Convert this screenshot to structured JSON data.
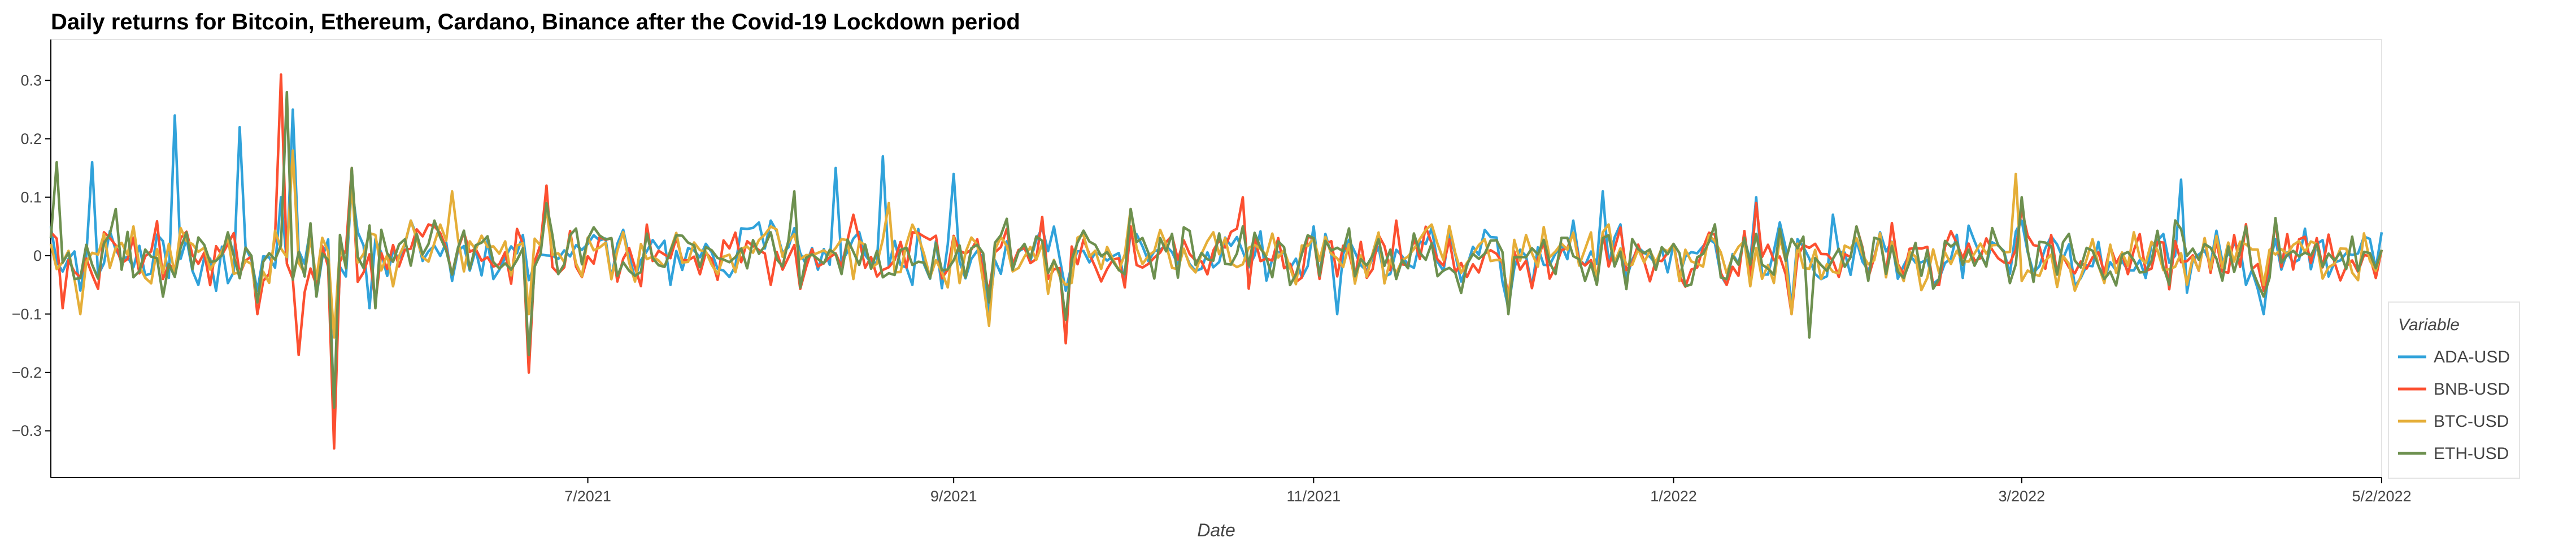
{
  "chart_data": {
    "type": "line",
    "title": "Daily returns for Bitcoin, Ethereum, Cardano, Binance after the Covid-19 Lockdown period",
    "xlabel": "Date",
    "ylabel": "",
    "x_range": [
      "2021-04-01",
      "2022-05-01"
    ],
    "ylim": [
      -0.38,
      0.37
    ],
    "y_ticks": [
      -0.3,
      -0.2,
      -0.1,
      0,
      0.1,
      0.2,
      0.3
    ],
    "y_tick_labels": [
      "−0.3",
      "−0.2",
      "−0.1",
      "0",
      "0.1",
      "0.2",
      "0.3"
    ],
    "x_ticks": [
      "2021-07-01",
      "2021-09-01",
      "2021-11-01",
      "2022-01-01",
      "2022-03-01",
      "2022-05-01"
    ],
    "x_tick_labels": [
      "7/2021",
      "9/2021",
      "11/2021",
      "1/2022",
      "3/2022",
      "5/2/2022"
    ],
    "grid": false,
    "legend": {
      "title": "Variable",
      "placement": "right"
    },
    "series": [
      {
        "name": "ADA-USD",
        "color": "#30a2da",
        "points": [
          [
            "2021-04-01",
            0.05
          ],
          [
            "2021-04-08",
            0.16
          ],
          [
            "2021-04-15",
            -0.02
          ],
          [
            "2021-04-22",
            0.24
          ],
          [
            "2021-04-26",
            -0.05
          ],
          [
            "2021-04-29",
            -0.06
          ],
          [
            "2021-05-03",
            0.22
          ],
          [
            "2021-05-06",
            -0.06
          ],
          [
            "2021-05-10",
            0.1
          ],
          [
            "2021-05-12",
            0.25
          ],
          [
            "2021-05-16",
            -0.07
          ],
          [
            "2021-05-19",
            -0.27
          ],
          [
            "2021-05-22",
            0.12
          ],
          [
            "2021-05-25",
            -0.09
          ],
          [
            "2021-06-01",
            0.06
          ],
          [
            "2021-06-15",
            -0.04
          ],
          [
            "2021-07-01",
            0.02
          ],
          [
            "2021-07-15",
            -0.05
          ],
          [
            "2021-08-01",
            0.06
          ],
          [
            "2021-08-12",
            0.15
          ],
          [
            "2021-08-20",
            0.17
          ],
          [
            "2021-08-25",
            -0.05
          ],
          [
            "2021-09-01",
            0.14
          ],
          [
            "2021-09-07",
            -0.1
          ],
          [
            "2021-09-20",
            -0.06
          ],
          [
            "2021-10-01",
            0.04
          ],
          [
            "2021-10-15",
            -0.02
          ],
          [
            "2021-11-01",
            0.05
          ],
          [
            "2021-11-05",
            -0.1
          ],
          [
            "2021-11-20",
            0.02
          ],
          [
            "2021-12-04",
            -0.09
          ],
          [
            "2021-12-15",
            0.06
          ],
          [
            "2021-12-20",
            0.11
          ],
          [
            "2022-01-01",
            0.02
          ],
          [
            "2022-01-10",
            -0.05
          ],
          [
            "2022-01-15",
            0.1
          ],
          [
            "2022-01-21",
            -0.09
          ],
          [
            "2022-01-28",
            0.07
          ],
          [
            "2022-02-05",
            0.04
          ],
          [
            "2022-02-15",
            -0.04
          ],
          [
            "2022-03-01",
            0.06
          ],
          [
            "2022-03-15",
            -0.04
          ],
          [
            "2022-03-28",
            0.13
          ],
          [
            "2022-04-08",
            -0.05
          ],
          [
            "2022-04-11",
            -0.1
          ],
          [
            "2022-04-20",
            0.02
          ],
          [
            "2022-05-01",
            0.04
          ]
        ]
      },
      {
        "name": "BNB-USD",
        "color": "#fc4f30",
        "points": [
          [
            "2021-04-01",
            0.04
          ],
          [
            "2021-04-03",
            -0.09
          ],
          [
            "2021-04-10",
            0.04
          ],
          [
            "2021-04-20",
            -0.04
          ],
          [
            "2021-05-01",
            0.02
          ],
          [
            "2021-05-06",
            -0.1
          ],
          [
            "2021-05-10",
            0.31
          ],
          [
            "2021-05-13",
            -0.17
          ],
          [
            "2021-05-16",
            -0.05
          ],
          [
            "2021-05-19",
            -0.33
          ],
          [
            "2021-05-22",
            0.15
          ],
          [
            "2021-05-26",
            -0.08
          ],
          [
            "2021-06-05",
            0.05
          ],
          [
            "2021-06-21",
            -0.2
          ],
          [
            "2021-06-24",
            0.12
          ],
          [
            "2021-07-05",
            0.03
          ],
          [
            "2021-08-01",
            -0.05
          ],
          [
            "2021-08-15",
            0.07
          ],
          [
            "2021-08-21",
            -0.02
          ],
          [
            "2021-09-07",
            -0.06
          ],
          [
            "2021-09-20",
            -0.15
          ],
          [
            "2021-10-01",
            0.05
          ],
          [
            "2021-10-20",
            0.1
          ],
          [
            "2021-11-01",
            0.03
          ],
          [
            "2021-11-15",
            0.06
          ],
          [
            "2021-12-04",
            -0.07
          ],
          [
            "2021-12-20",
            0.04
          ],
          [
            "2022-01-01",
            0.02
          ],
          [
            "2022-01-10",
            -0.05
          ],
          [
            "2022-01-15",
            0.09
          ],
          [
            "2022-01-21",
            -0.1
          ],
          [
            "2022-02-01",
            0.05
          ],
          [
            "2022-02-15",
            -0.05
          ],
          [
            "2022-03-01",
            0.08
          ],
          [
            "2022-03-15",
            -0.03
          ],
          [
            "2022-04-01",
            0.03
          ],
          [
            "2022-04-11",
            -0.06
          ],
          [
            "2022-04-20",
            0.03
          ],
          [
            "2022-05-01",
            0.01
          ]
        ]
      },
      {
        "name": "BTC-USD",
        "color": "#e5ae38",
        "points": [
          [
            "2021-04-01",
            0.02
          ],
          [
            "2021-04-06",
            -0.1
          ],
          [
            "2021-04-15",
            0.05
          ],
          [
            "2021-04-20",
            -0.03
          ],
          [
            "2021-05-01",
            0.03
          ],
          [
            "2021-05-06",
            -0.08
          ],
          [
            "2021-05-12",
            0.18
          ],
          [
            "2021-05-16",
            -0.04
          ],
          [
            "2021-05-19",
            -0.14
          ],
          [
            "2021-05-22",
            0.12
          ],
          [
            "2021-06-01",
            0.06
          ],
          [
            "2021-06-08",
            0.11
          ],
          [
            "2021-06-21",
            -0.1
          ],
          [
            "2021-06-24",
            0.08
          ],
          [
            "2021-07-10",
            0.02
          ],
          [
            "2021-08-01",
            0.05
          ],
          [
            "2021-08-15",
            -0.04
          ],
          [
            "2021-08-21",
            0.09
          ],
          [
            "2021-09-07",
            -0.12
          ],
          [
            "2021-09-20",
            -0.05
          ],
          [
            "2021-10-01",
            0.08
          ],
          [
            "2021-10-15",
            0.04
          ],
          [
            "2021-11-01",
            0.03
          ],
          [
            "2021-11-15",
            -0.03
          ],
          [
            "2021-12-04",
            -0.08
          ],
          [
            "2021-12-20",
            0.04
          ],
          [
            "2022-01-01",
            0.02
          ],
          [
            "2022-01-10",
            -0.03
          ],
          [
            "2022-01-21",
            -0.1
          ],
          [
            "2022-02-01",
            0.03
          ],
          [
            "2022-02-15",
            -0.03
          ],
          [
            "2022-02-28",
            0.14
          ],
          [
            "2022-03-10",
            -0.06
          ],
          [
            "2022-03-20",
            0.04
          ],
          [
            "2022-04-01",
            0.03
          ],
          [
            "2022-04-11",
            -0.05
          ],
          [
            "2022-04-20",
            0.02
          ],
          [
            "2022-05-01",
            0.01
          ]
        ]
      },
      {
        "name": "ETH-USD",
        "color": "#6d904f",
        "points": [
          [
            "2021-04-01",
            0.03
          ],
          [
            "2021-04-02",
            0.16
          ],
          [
            "2021-04-05",
            -0.04
          ],
          [
            "2021-04-12",
            0.08
          ],
          [
            "2021-04-20",
            -0.07
          ],
          [
            "2021-05-01",
            0.04
          ],
          [
            "2021-05-06",
            -0.08
          ],
          [
            "2021-05-11",
            0.28
          ],
          [
            "2021-05-16",
            -0.07
          ],
          [
            "2021-05-19",
            -0.26
          ],
          [
            "2021-05-22",
            0.15
          ],
          [
            "2021-05-26",
            -0.09
          ],
          [
            "2021-06-05",
            0.06
          ],
          [
            "2021-06-21",
            -0.17
          ],
          [
            "2021-06-24",
            0.09
          ],
          [
            "2021-07-05",
            0.03
          ],
          [
            "2021-08-01",
            0.04
          ],
          [
            "2021-08-05",
            0.11
          ],
          [
            "2021-08-21",
            -0.03
          ],
          [
            "2021-09-07",
            -0.08
          ],
          [
            "2021-09-20",
            -0.11
          ],
          [
            "2021-10-01",
            0.08
          ],
          [
            "2021-10-20",
            0.05
          ],
          [
            "2021-11-01",
            0.03
          ],
          [
            "2021-11-15",
            -0.04
          ],
          [
            "2021-12-04",
            -0.1
          ],
          [
            "2021-12-20",
            0.03
          ],
          [
            "2022-01-01",
            0.02
          ],
          [
            "2022-01-10",
            -0.04
          ],
          [
            "2022-01-24",
            -0.14
          ],
          [
            "2022-02-01",
            0.05
          ],
          [
            "2022-02-15",
            -0.04
          ],
          [
            "2022-03-01",
            0.1
          ],
          [
            "2022-03-15",
            -0.04
          ],
          [
            "2022-04-01",
            0.02
          ],
          [
            "2022-04-11",
            -0.07
          ],
          [
            "2022-04-20",
            0.02
          ],
          [
            "2022-05-01",
            0.01
          ]
        ]
      }
    ]
  }
}
